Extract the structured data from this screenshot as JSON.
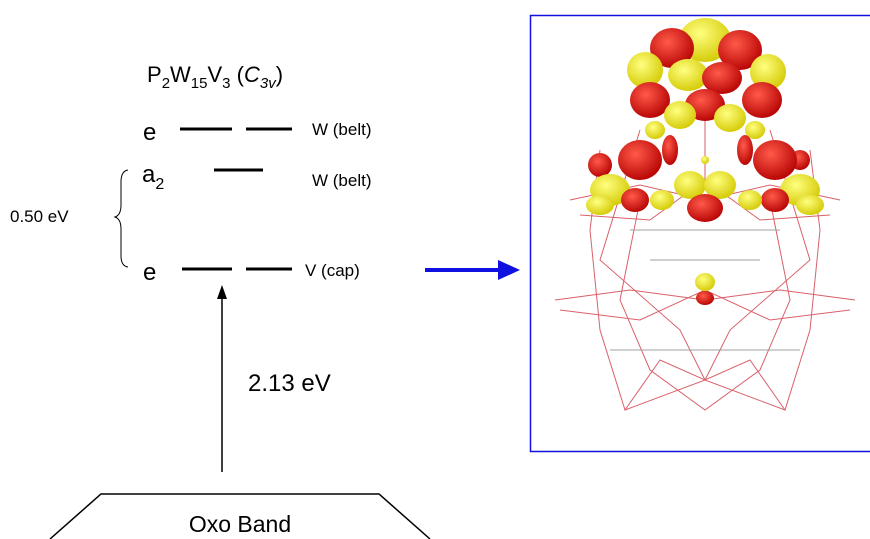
{
  "title": {
    "parts": [
      "P",
      "2",
      "W",
      "15",
      "V",
      "3",
      " (",
      "C",
      "3v",
      ")"
    ]
  },
  "levels": [
    {
      "symbol": "e",
      "assignment": "W (belt)"
    },
    {
      "symbol": "a",
      "subscript": "2",
      "assignment": "W (belt)"
    },
    {
      "symbol": "e",
      "assignment": "V (cap)"
    }
  ],
  "gap_label": "0.50 eV",
  "transition_label": "2.13 eV",
  "band_label": "Oxo Band"
}
